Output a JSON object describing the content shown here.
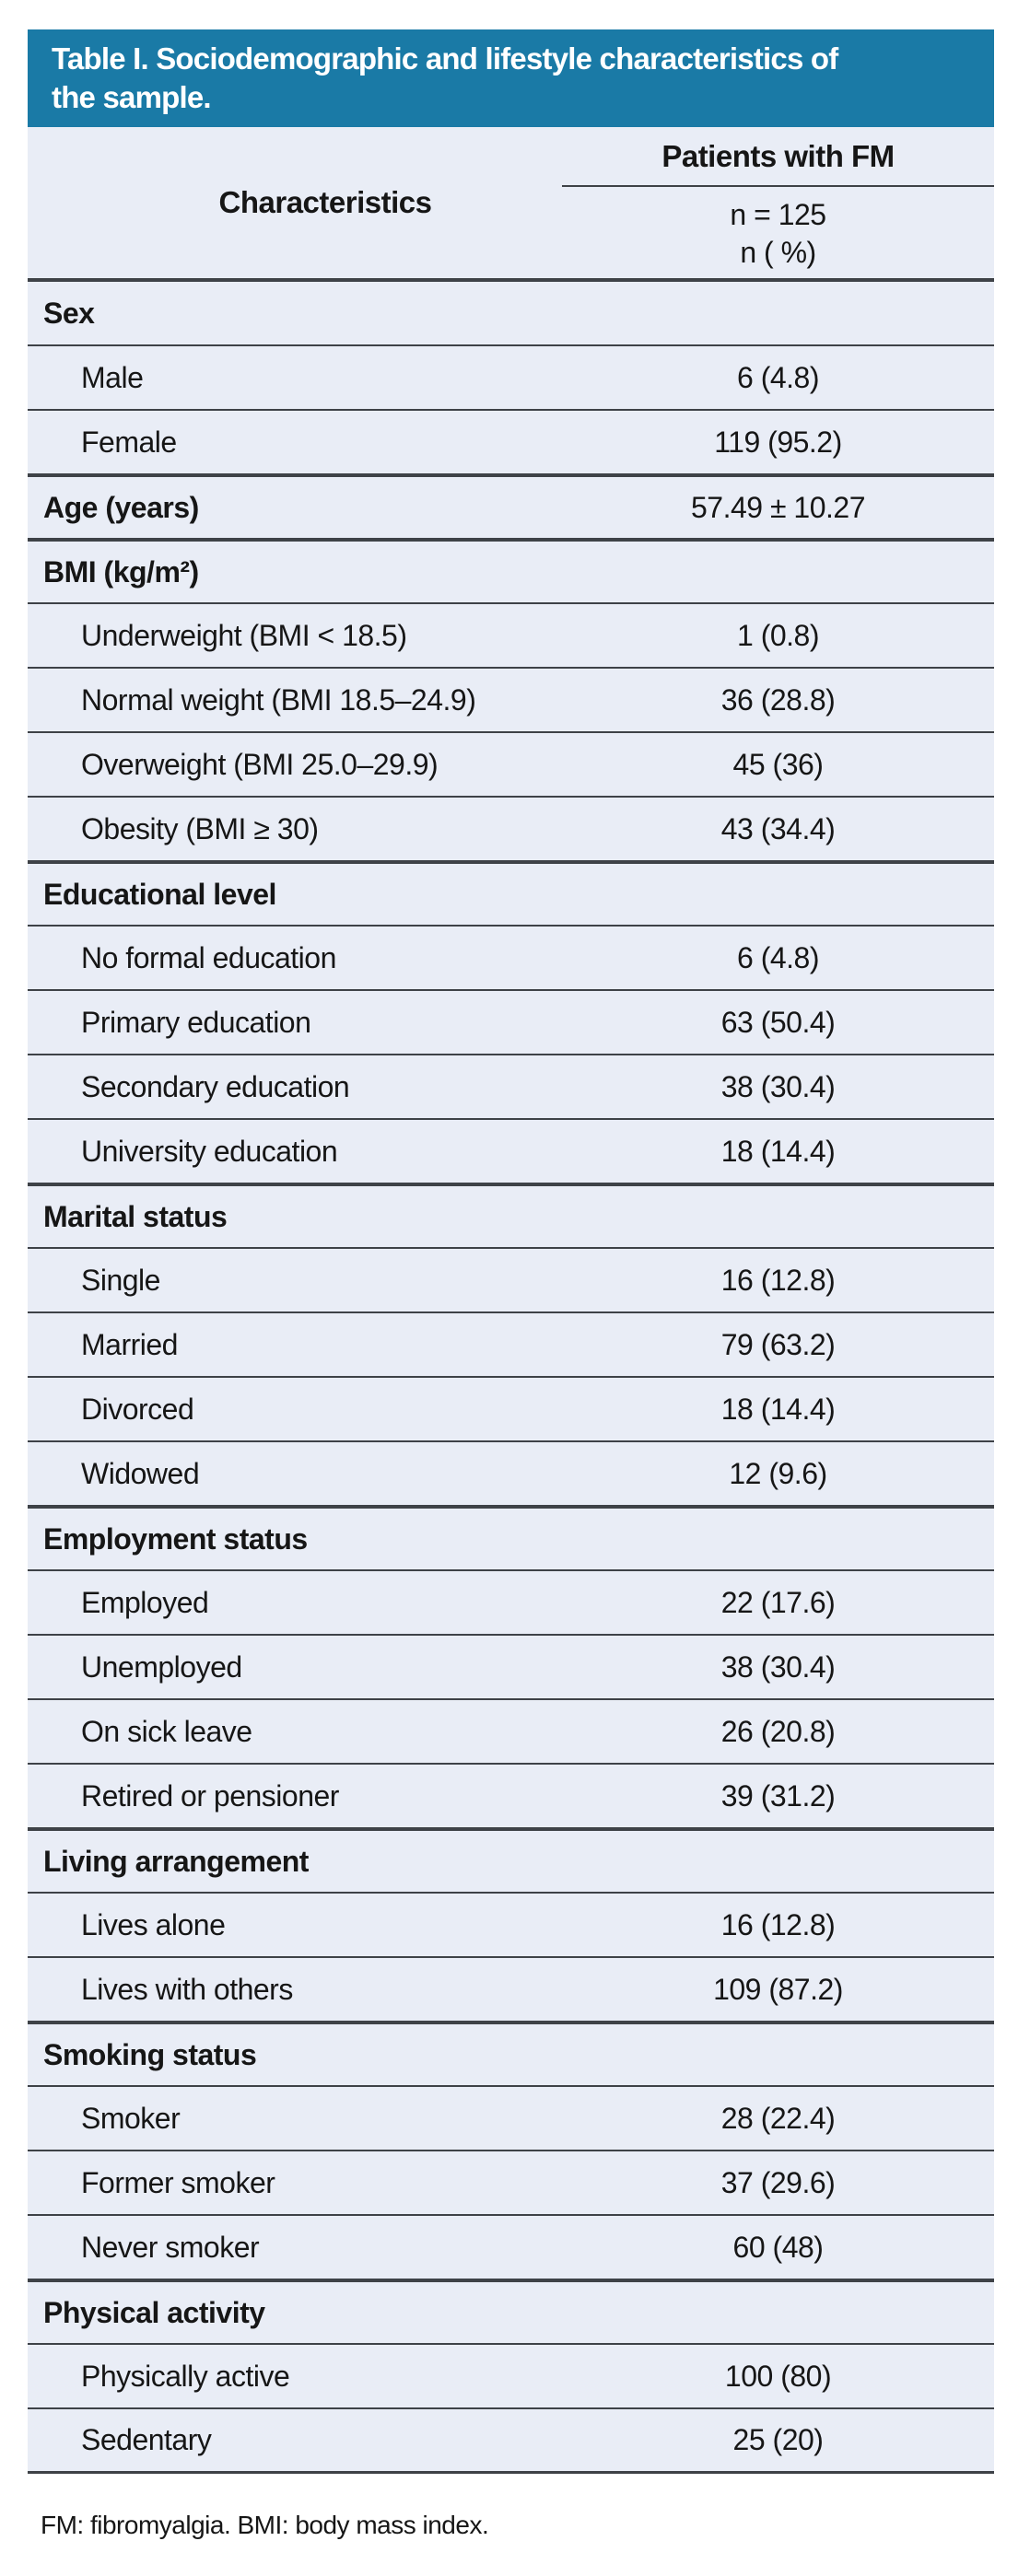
{
  "page": {
    "title": "Table I. Sociodemographic and lifestyle characteristics of the sample.",
    "title_lines": [
      "Table I. Sociodemographic and lifestyle characteristics of",
      "the sample."
    ],
    "header": {
      "characteristics_label": "Characteristics",
      "group_label": "Patients with FM",
      "sub_line1": "n = 125",
      "sub_line2": "n ( %)"
    },
    "rows": [
      {
        "section": true,
        "label": "Sex",
        "value": ""
      },
      {
        "section": false,
        "label": "Male",
        "value": "6 (4.8)"
      },
      {
        "section": false,
        "label": "Female",
        "value": "119 (95.2)"
      },
      {
        "section": true,
        "label": "Age (years)",
        "value": "57.49 ± 10.27"
      },
      {
        "section": true,
        "label": "BMI (kg/m²)",
        "value": ""
      },
      {
        "section": false,
        "label": "Underweight (BMI < 18.5)",
        "value": "1 (0.8)"
      },
      {
        "section": false,
        "label": "Normal weight (BMI 18.5–24.9)",
        "value": "36 (28.8)"
      },
      {
        "section": false,
        "label": "Overweight (BMI 25.0–29.9)",
        "value": "45 (36)"
      },
      {
        "section": false,
        "label": "Obesity (BMI ≥ 30)",
        "value": "43 (34.4)"
      },
      {
        "section": true,
        "label": "Educational level",
        "value": ""
      },
      {
        "section": false,
        "label": "No formal education",
        "value": "6 (4.8)"
      },
      {
        "section": false,
        "label": "Primary education",
        "value": "63 (50.4)"
      },
      {
        "section": false,
        "label": "Secondary education",
        "value": "38 (30.4)"
      },
      {
        "section": false,
        "label": "University education",
        "value": "18 (14.4)"
      },
      {
        "section": true,
        "label": "Marital status",
        "value": ""
      },
      {
        "section": false,
        "label": "Single",
        "value": "16 (12.8)"
      },
      {
        "section": false,
        "label": "Married",
        "value": "79 (63.2)"
      },
      {
        "section": false,
        "label": "Divorced",
        "value": "18 (14.4)"
      },
      {
        "section": false,
        "label": "Widowed",
        "value": "12 (9.6)"
      },
      {
        "section": true,
        "label": "Employment status",
        "value": ""
      },
      {
        "section": false,
        "label": "Employed",
        "value": "22 (17.6)"
      },
      {
        "section": false,
        "label": "Unemployed",
        "value": "38 (30.4)"
      },
      {
        "section": false,
        "label": "On sick leave",
        "value": "26 (20.8)"
      },
      {
        "section": false,
        "label": "Retired or pensioner",
        "value": "39 (31.2)"
      },
      {
        "section": true,
        "label": "Living arrangement",
        "value": ""
      },
      {
        "section": false,
        "label": "Lives alone",
        "value": "16 (12.8)"
      },
      {
        "section": false,
        "label": "Lives with others",
        "value": "109 (87.2)"
      },
      {
        "section": true,
        "label": "Smoking status",
        "value": ""
      },
      {
        "section": false,
        "label": "Smoker",
        "value": "28 (22.4)"
      },
      {
        "section": false,
        "label": "Former smoker",
        "value": "37 (29.6)"
      },
      {
        "section": false,
        "label": "Never smoker",
        "value": "60 (48)"
      },
      {
        "section": true,
        "label": "Physical activity",
        "value": ""
      },
      {
        "section": false,
        "label": "Physically active",
        "value": "100 (80)"
      },
      {
        "section": false,
        "label": "Sedentary",
        "value": "25 (20)"
      }
    ],
    "footnote": "FM: fibromyalgia. BMI: body mass index.",
    "colors": {
      "title_bg": "#1a7aa6",
      "title_text": "#ffffff",
      "row_bg": "#e9edf6",
      "rule": "#3e4247",
      "text": "#161616"
    }
  }
}
